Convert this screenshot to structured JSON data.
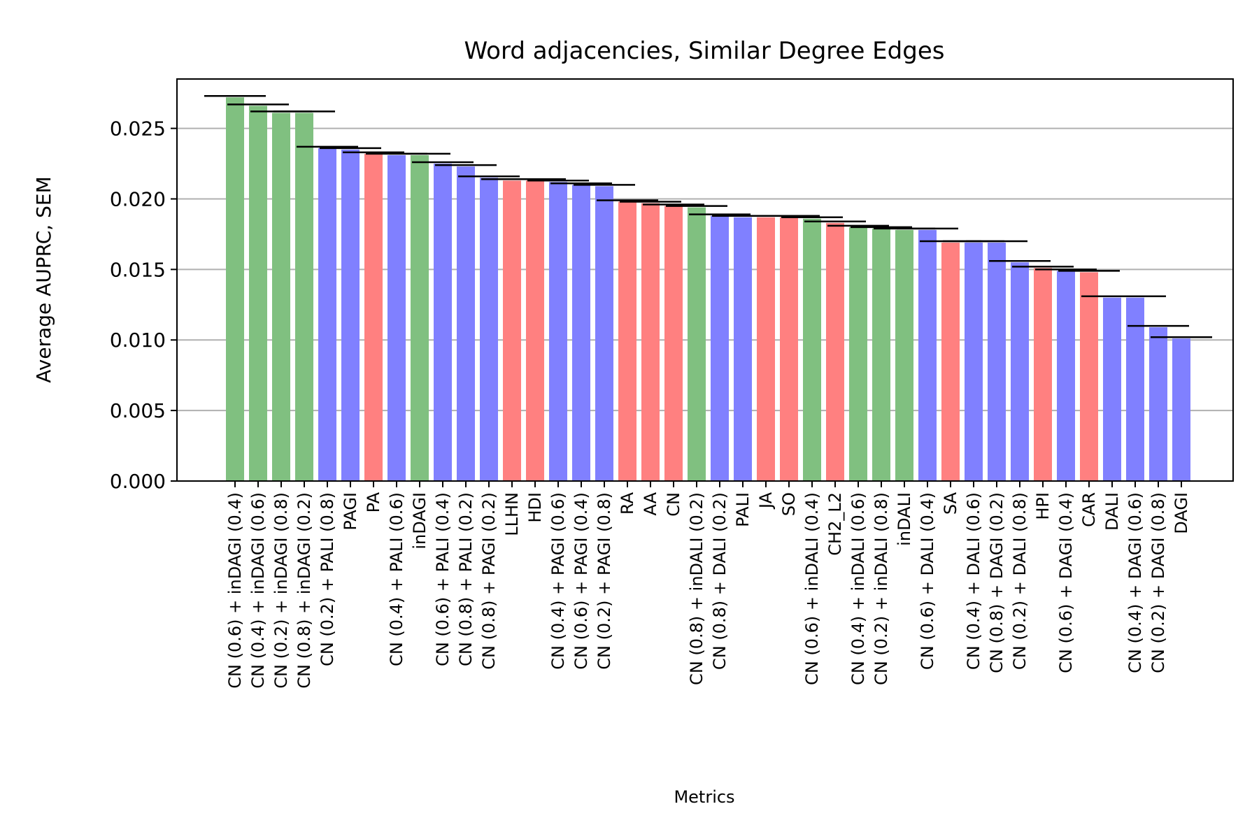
{
  "chart_data": {
    "type": "bar",
    "title": "Word adjacencies, Similar Degree Edges",
    "xlabel": "Metrics",
    "ylabel": "Average AUPRC, SEM",
    "ylim": [
      0,
      0.0285
    ],
    "yticks": [
      "0.000",
      "0.005",
      "0.010",
      "0.015",
      "0.020",
      "0.025"
    ],
    "ytick_values": [
      0,
      0.005,
      0.01,
      0.015,
      0.02,
      0.025
    ],
    "grid": "horizontal",
    "colors": {
      "green": "#80c080",
      "blue": "#8080ff",
      "red": "#ff8080",
      "error": "#000000"
    },
    "categories": [
      "CN (0.6) + inDAGI (0.4)",
      "CN (0.4) + inDAGI (0.6)",
      "CN (0.2) + inDAGI (0.8)",
      "CN (0.8) + inDAGI (0.2)",
      "CN (0.2) + PALI (0.8)",
      "PAGI",
      "PA",
      "CN (0.4) + PALI (0.6)",
      "inDAGI",
      "CN (0.6) + PALI (0.4)",
      "CN (0.8) + PALI (0.2)",
      "CN (0.8) + PAGI (0.2)",
      "LLHN",
      "HDI",
      "CN (0.4) + PAGI (0.6)",
      "CN (0.6) + PAGI (0.4)",
      "CN (0.2) + PAGI (0.8)",
      "RA",
      "AA",
      "CN",
      "CN (0.8) + inDALI (0.2)",
      "CN (0.8) + DALI (0.2)",
      "PALI",
      "JA",
      "SO",
      "CN (0.6) + inDALI (0.4)",
      "CH2_L2",
      "CN (0.4) + inDALI (0.6)",
      "CN (0.2) + inDALI (0.8)",
      "inDALI",
      "CN (0.6) + DALI (0.4)",
      "SA",
      "CN (0.4) + DALI (0.6)",
      "CN (0.8) + DAGI (0.2)",
      "CN (0.2) + DALI (0.8)",
      "HPI",
      "CN (0.6) + DAGI (0.4)",
      "CAR",
      "DALI",
      "CN (0.4) + DAGI (0.6)",
      "CN (0.2) + DAGI (0.8)",
      "DAGI"
    ],
    "values": [
      0.0272,
      0.0266,
      0.0261,
      0.0261,
      0.0236,
      0.0235,
      0.0232,
      0.0231,
      0.0231,
      0.0225,
      0.0223,
      0.0215,
      0.0213,
      0.0213,
      0.0212,
      0.021,
      0.0209,
      0.0198,
      0.0197,
      0.0195,
      0.0194,
      0.0188,
      0.0187,
      0.0187,
      0.0187,
      0.0186,
      0.0183,
      0.018,
      0.0179,
      0.0178,
      0.0178,
      0.0169,
      0.0169,
      0.0169,
      0.0155,
      0.0151,
      0.0149,
      0.0148,
      0.013,
      0.013,
      0.0109,
      0.0101
    ],
    "sem": [
      0.0001,
      0.0001,
      0.0001,
      0.0001,
      0.0001,
      0.0001,
      0.0001,
      0.0001,
      0.0001,
      0.0001,
      0.0001,
      0.0001,
      0.0001,
      0.0001,
      0.0001,
      0.0001,
      0.0001,
      0.0001,
      0.0001,
      0.0001,
      0.0001,
      0.0001,
      0.0001,
      0.0001,
      0.0001,
      0.0001,
      0.0001,
      0.0001,
      0.0001,
      0.0001,
      0.0001,
      0.0001,
      0.0001,
      0.0001,
      0.0001,
      0.0001,
      0.0001,
      0.0001,
      0.0001,
      0.0001,
      0.0001,
      0.0001
    ],
    "bar_colors": [
      "green",
      "green",
      "green",
      "green",
      "blue",
      "blue",
      "red",
      "blue",
      "green",
      "blue",
      "blue",
      "blue",
      "red",
      "red",
      "blue",
      "blue",
      "blue",
      "red",
      "red",
      "red",
      "green",
      "blue",
      "blue",
      "red",
      "red",
      "green",
      "red",
      "green",
      "green",
      "green",
      "blue",
      "red",
      "blue",
      "blue",
      "blue",
      "red",
      "blue",
      "red",
      "blue",
      "blue",
      "blue",
      "blue"
    ]
  }
}
